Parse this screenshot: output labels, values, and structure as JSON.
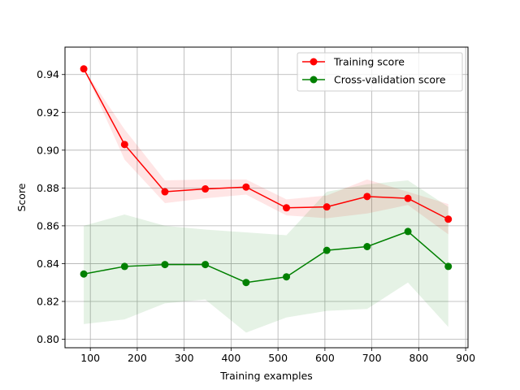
{
  "chart_data": {
    "type": "line",
    "title": "",
    "xlabel": "Training examples",
    "ylabel": "Score",
    "xlim": [
      46,
      905
    ],
    "ylim": [
      0.7955,
      0.9545
    ],
    "xticks": [
      100,
      200,
      300,
      400,
      500,
      600,
      700,
      800,
      900
    ],
    "yticks": [
      0.8,
      0.82,
      0.84,
      0.86,
      0.88,
      0.9,
      0.92,
      0.94
    ],
    "xtick_labels": [
      "100",
      "200",
      "300",
      "400",
      "500",
      "600",
      "700",
      "800",
      "900"
    ],
    "ytick_labels": [
      "0.80",
      "0.82",
      "0.84",
      "0.86",
      "0.88",
      "0.90",
      "0.92",
      "0.94"
    ],
    "grid": true,
    "legend_position": "top-right",
    "x": [
      86,
      173,
      259,
      345,
      432,
      518,
      604,
      690,
      777,
      863
    ],
    "series": [
      {
        "name": "Training score",
        "color": "#ff0000",
        "values": [
          0.943,
          0.903,
          0.878,
          0.8795,
          0.8805,
          0.8695,
          0.87,
          0.8755,
          0.8745,
          0.8635
        ],
        "band_upper": [
          0.943,
          0.911,
          0.884,
          0.8845,
          0.8845,
          0.874,
          0.876,
          0.8845,
          0.878,
          0.8715
        ],
        "band_lower": [
          0.943,
          0.895,
          0.872,
          0.8745,
          0.8765,
          0.8655,
          0.864,
          0.8665,
          0.871,
          0.8555
        ]
      },
      {
        "name": "Cross-validation score",
        "color": "#008000",
        "values": [
          0.8345,
          0.8385,
          0.8395,
          0.8395,
          0.83,
          0.833,
          0.847,
          0.849,
          0.857,
          0.8385
        ],
        "band_upper": [
          0.86,
          0.866,
          0.86,
          0.858,
          0.8565,
          0.855,
          0.878,
          0.882,
          0.884,
          0.87
        ],
        "band_lower": [
          0.808,
          0.8105,
          0.819,
          0.821,
          0.8035,
          0.8115,
          0.815,
          0.816,
          0.83,
          0.8065
        ]
      }
    ]
  }
}
